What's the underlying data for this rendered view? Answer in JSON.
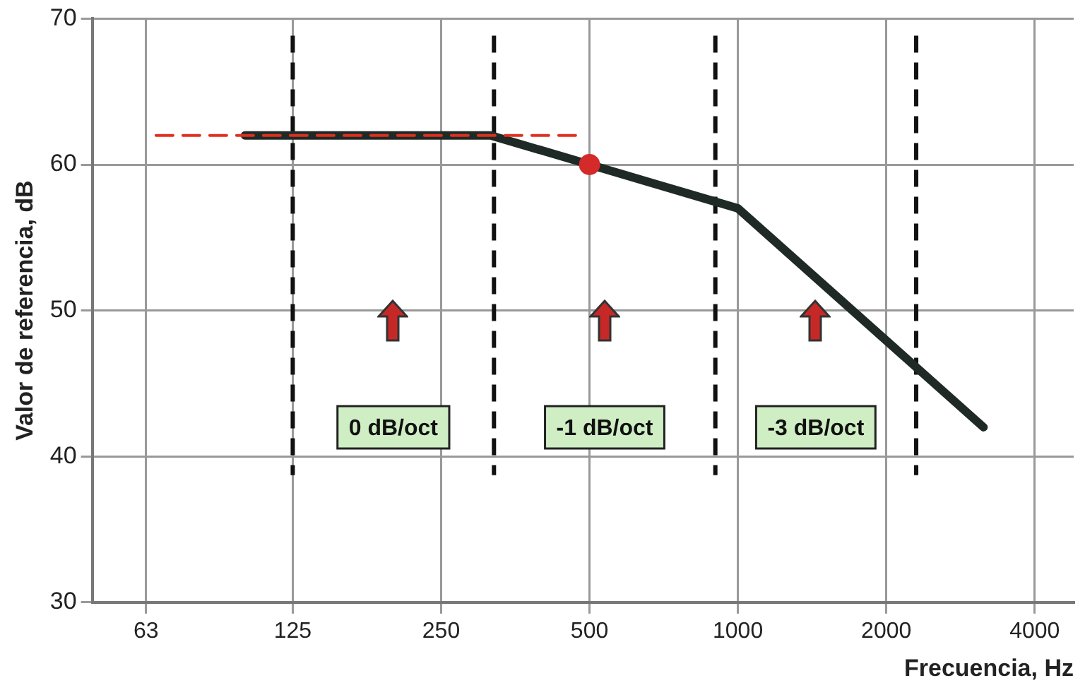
{
  "chart_data": {
    "type": "line",
    "xlabel": "Frecuencia, Hz",
    "ylabel": "Valor de referencia, dB",
    "log": "x",
    "xlim": [
      49,
      4800
    ],
    "xticks": [
      63,
      125,
      250,
      500,
      1000,
      2000,
      4000
    ],
    "ylim": [
      30,
      70
    ],
    "yticks": [
      30,
      40,
      50,
      60,
      70
    ],
    "grid": true,
    "legend": false,
    "marker": "none",
    "series": [
      {
        "x": [
          100,
          315,
          1000,
          3150
        ],
        "values": [
          62,
          62,
          57,
          42
        ],
        "color": "#1f2a26"
      },
      {
        "x": [
          66,
          470
        ],
        "values": [
          62,
          62
        ],
        "color": "#e03020",
        "line_style": "dashed"
      },
      {
        "type": "scatter",
        "x": [
          500
        ],
        "values": [
          60
        ],
        "color": "#d42a2a",
        "marker": "circle"
      }
    ],
    "ref_lines": [
      {
        "axis": "x",
        "value": 125,
        "color": "#111111",
        "line_style": "dashed"
      },
      {
        "axis": "x",
        "value": 320,
        "color": "#111111",
        "line_style": "dashed"
      },
      {
        "axis": "x",
        "value": 900,
        "color": "#111111",
        "line_style": "dashed"
      },
      {
        "axis": "x",
        "value": 2300,
        "color": "#111111",
        "line_style": "dashed"
      }
    ],
    "annotations": [
      "0 dB/oct",
      "-1 dB/oct",
      "-3 dB/oct"
    ]
  }
}
